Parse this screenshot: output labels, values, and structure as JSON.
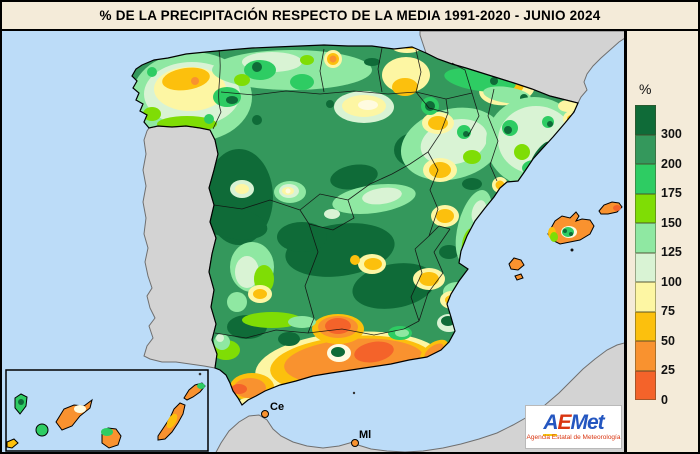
{
  "title": "% DE LA PRECIPITACIÓN RESPECTO DE LA MEDIA 1991-2020 - JUNIO 2024",
  "legend": {
    "unit_label": "%",
    "entries": [
      {
        "value": "300",
        "color": "#0f6b38"
      },
      {
        "value": "200",
        "color": "#34985c"
      },
      {
        "value": "175",
        "color": "#2ecc63"
      },
      {
        "value": "150",
        "color": "#7fdd05"
      },
      {
        "value": "125",
        "color": "#8fe8a2"
      },
      {
        "value": "100",
        "color": "#d9f3d4"
      },
      {
        "value": "75",
        "color": "#fdf6a3"
      },
      {
        "value": "50",
        "color": "#fcc00d"
      },
      {
        "value": "25",
        "color": "#f9922f"
      },
      {
        "value": "0",
        "color": "#f4632a"
      }
    ]
  },
  "map": {
    "sea_color": "#bcdcf8",
    "other_land_color": "#d3d3d3",
    "city_labels": [
      {
        "label": "Ce"
      },
      {
        "label": "Ml"
      }
    ]
  },
  "logo": {
    "part_a": "A",
    "part_e": "E",
    "part_met": "Met",
    "subtitle": "Agencia Estatal de Meteorología"
  }
}
